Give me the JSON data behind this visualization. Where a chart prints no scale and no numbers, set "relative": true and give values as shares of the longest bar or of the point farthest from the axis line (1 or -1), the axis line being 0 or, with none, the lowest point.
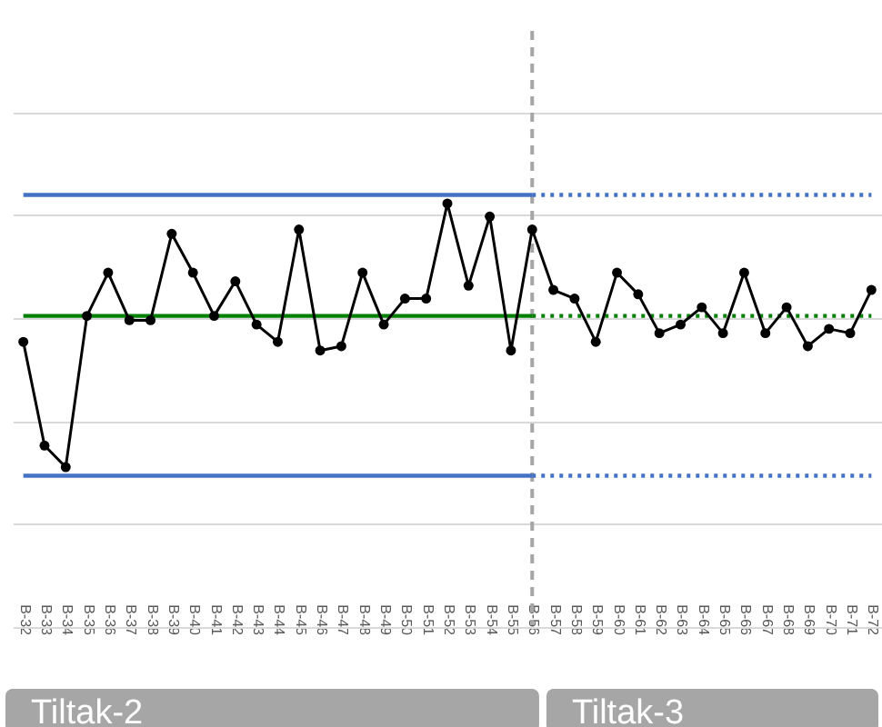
{
  "chart_data": {
    "type": "line",
    "relative": true,
    "grid": "y",
    "tick_labels": "x",
    "categories": [
      "B-32",
      "B-33",
      "B-34",
      "B-35",
      "B-36",
      "B-37",
      "B-38",
      "B-39",
      "B-40",
      "B-41",
      "B-42",
      "B-43",
      "B-44",
      "B-45",
      "B-46",
      "B-47",
      "B-48",
      "B-49",
      "B-50",
      "B-51",
      "B-52",
      "B-53",
      "B-54",
      "B-55",
      "B-56",
      "B-57",
      "B-58",
      "B-59",
      "B-60",
      "B-61",
      "B-62",
      "B-63",
      "B-64",
      "B-65",
      "B-66",
      "B-67",
      "B-68",
      "B-69",
      "B-70",
      "B-71",
      "B-72"
    ],
    "series": [
      {
        "color": "#4472c4",
        "line_style": "solid",
        "marker": "none",
        "values": [
          1,
          1,
          1,
          1,
          1,
          1,
          1,
          1,
          1,
          1,
          1,
          1,
          1,
          1,
          1,
          1,
          1,
          1,
          1,
          1,
          1,
          1,
          1,
          1,
          1,
          null,
          null,
          null,
          null,
          null,
          null,
          null,
          null,
          null,
          null,
          null,
          null,
          null,
          null,
          null,
          null
        ]
      },
      {
        "color": "#4472c4",
        "line_style": "dotted",
        "marker": "none",
        "values": [
          null,
          null,
          null,
          null,
          null,
          null,
          null,
          null,
          null,
          null,
          null,
          null,
          null,
          null,
          null,
          null,
          null,
          null,
          null,
          null,
          null,
          null,
          null,
          null,
          1,
          1,
          1,
          1,
          1,
          1,
          1,
          1,
          1,
          1,
          1,
          1,
          1,
          1,
          1,
          1,
          1
        ]
      },
      {
        "color": "#4472c4",
        "line_style": "solid",
        "marker": "none",
        "values": [
          0.35,
          0.35,
          0.35,
          0.35,
          0.35,
          0.35,
          0.35,
          0.35,
          0.35,
          0.35,
          0.35,
          0.35,
          0.35,
          0.35,
          0.35,
          0.35,
          0.35,
          0.35,
          0.35,
          0.35,
          0.35,
          0.35,
          0.35,
          0.35,
          0.35,
          null,
          null,
          null,
          null,
          null,
          null,
          null,
          null,
          null,
          null,
          null,
          null,
          null,
          null,
          null,
          null
        ]
      },
      {
        "color": "#4472c4",
        "line_style": "dotted",
        "marker": "none",
        "values": [
          null,
          null,
          null,
          null,
          null,
          null,
          null,
          null,
          null,
          null,
          null,
          null,
          null,
          null,
          null,
          null,
          null,
          null,
          null,
          null,
          null,
          null,
          null,
          null,
          0.35,
          0.35,
          0.35,
          0.35,
          0.35,
          0.35,
          0.35,
          0.35,
          0.35,
          0.35,
          0.35,
          0.35,
          0.35,
          0.35,
          0.35,
          0.35,
          0.35
        ]
      },
      {
        "color": "#008000",
        "line_style": "solid",
        "marker": "none",
        "values": [
          0.72,
          0.72,
          0.72,
          0.72,
          0.72,
          0.72,
          0.72,
          0.72,
          0.72,
          0.72,
          0.72,
          0.72,
          0.72,
          0.72,
          0.72,
          0.72,
          0.72,
          0.72,
          0.72,
          0.72,
          0.72,
          0.72,
          0.72,
          0.72,
          0.72,
          null,
          null,
          null,
          null,
          null,
          null,
          null,
          null,
          null,
          null,
          null,
          null,
          null,
          null,
          null,
          null
        ]
      },
      {
        "color": "#008000",
        "line_style": "dotted",
        "marker": "none",
        "values": [
          null,
          null,
          null,
          null,
          null,
          null,
          null,
          null,
          null,
          null,
          null,
          null,
          null,
          null,
          null,
          null,
          null,
          null,
          null,
          null,
          null,
          null,
          null,
          null,
          0.72,
          0.72,
          0.72,
          0.72,
          0.72,
          0.72,
          0.72,
          0.72,
          0.72,
          0.72,
          0.72,
          0.72,
          0.72,
          0.72,
          0.72,
          0.72,
          0.72
        ]
      },
      {
        "color": "#000000",
        "line_style": "solid",
        "marker": "circle",
        "values": [
          0.66,
          0.42,
          0.37,
          0.72,
          0.82,
          0.71,
          0.71,
          0.91,
          0.82,
          0.72,
          0.8,
          0.7,
          0.66,
          0.92,
          0.64,
          0.65,
          0.82,
          0.7,
          0.76,
          0.76,
          0.98,
          0.79,
          0.95,
          0.64,
          0.92,
          0.78,
          0.76,
          0.66,
          0.82,
          0.77,
          0.68,
          0.7,
          0.74,
          0.68,
          0.82,
          0.68,
          0.74,
          0.65,
          0.69,
          0.68,
          0.78
        ]
      }
    ],
    "ref_lines": [
      {
        "axis": "x",
        "value": "B-56",
        "color": "#a6a6a6",
        "line_style": "dashed"
      }
    ],
    "annotations": [
      "Tiltak-2",
      "Tiltak-3"
    ]
  }
}
